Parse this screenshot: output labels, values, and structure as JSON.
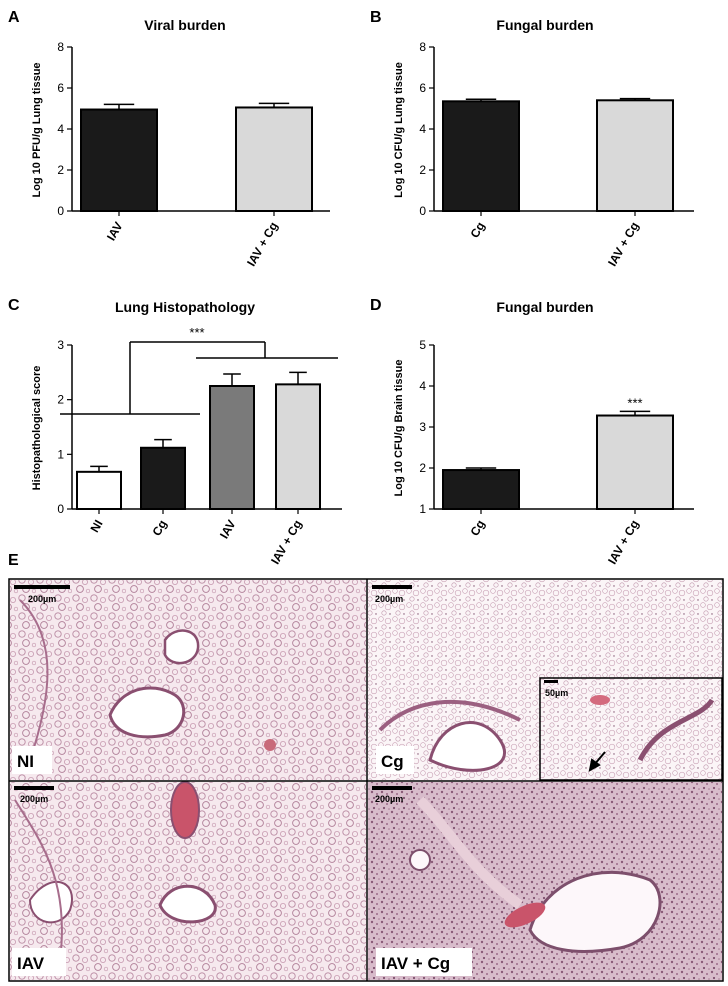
{
  "chart_data": [
    {
      "panel": "A",
      "type": "bar",
      "title": "Viral burden",
      "ylabel": "Log 10 PFU/g Lung tissue",
      "categories": [
        "IAV",
        "IAV + Cg"
      ],
      "values": [
        4.95,
        5.05
      ],
      "errors": [
        0.25,
        0.2
      ],
      "colors": [
        "#1a1a1a",
        "#d9d9d9"
      ],
      "ylim": [
        0,
        8
      ],
      "yticks": [
        0,
        2,
        4,
        6,
        8
      ],
      "grid": false
    },
    {
      "panel": "B",
      "type": "bar",
      "title": "Fungal burden",
      "ylabel": "Log 10 CFU/g Lung tissue",
      "categories": [
        "Cg",
        "IAV + Cg"
      ],
      "values": [
        5.35,
        5.4
      ],
      "errors": [
        0.1,
        0.08
      ],
      "colors": [
        "#1a1a1a",
        "#d9d9d9"
      ],
      "ylim": [
        0,
        8
      ],
      "yticks": [
        0,
        2,
        4,
        6,
        8
      ],
      "grid": false
    },
    {
      "panel": "C",
      "type": "bar",
      "title": "Lung Histopathology",
      "ylabel": "Histopathological score",
      "categories": [
        "NI",
        "Cg",
        "IAV",
        "IAV + Cg"
      ],
      "values": [
        0.68,
        1.12,
        2.25,
        2.28
      ],
      "errors": [
        0.1,
        0.15,
        0.22,
        0.22
      ],
      "colors": [
        "#ffffff",
        "#1a1a1a",
        "#7a7a7a",
        "#d9d9d9"
      ],
      "ylim": [
        0,
        3
      ],
      "yticks": [
        0,
        1,
        2,
        3
      ],
      "significance": "***",
      "grid": false
    },
    {
      "panel": "D",
      "type": "bar",
      "title": "Fungal burden",
      "ylabel": "Log 10 CFU/g Brain tissue",
      "categories": [
        "Cg",
        "IAV + Cg"
      ],
      "values": [
        1.95,
        3.28
      ],
      "errors": [
        0.05,
        0.1
      ],
      "colors": [
        "#1a1a1a",
        "#d9d9d9"
      ],
      "ylim": [
        1,
        5
      ],
      "yticks": [
        1,
        2,
        3,
        4,
        5
      ],
      "significance": [
        "",
        "***"
      ],
      "grid": false
    }
  ],
  "panel_e": {
    "label": "E",
    "images": [
      {
        "label": "NI",
        "scale": "200µm",
        "bg": "#f4e6ec"
      },
      {
        "label": "Cg",
        "scale": "200µm",
        "bg": "#f6ebef",
        "inset_scale": "50µm"
      },
      {
        "label": "IAV",
        "scale": "200µm",
        "bg": "#f2e2e9"
      },
      {
        "label": "IAV + Cg",
        "scale": "200µm",
        "bg": "#dcc3d0"
      }
    ]
  }
}
